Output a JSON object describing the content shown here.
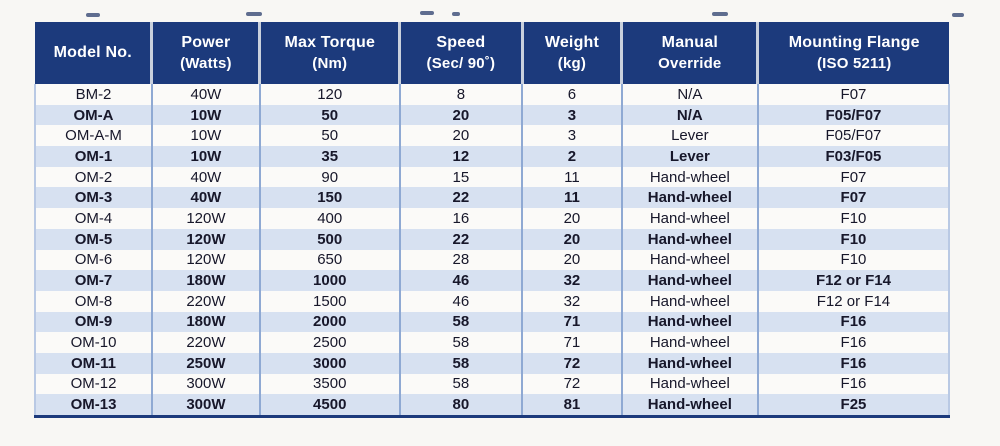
{
  "table": {
    "column_keys": [
      "model",
      "power",
      "torque",
      "speed",
      "weight",
      "override",
      "flange"
    ],
    "columns": [
      {
        "line1": "Model No.",
        "line2": ""
      },
      {
        "line1": "Power",
        "line2": "(Watts)"
      },
      {
        "line1": "Max Torque",
        "line2": "(Nm)"
      },
      {
        "line1": "Speed",
        "line2": "(Sec/ 90˚)"
      },
      {
        "line1": "Weight",
        "line2": "(kg)"
      },
      {
        "line1": "Manual",
        "line2": "Override"
      },
      {
        "line1": "Mounting Flange",
        "line2": "(ISO 5211)"
      }
    ],
    "rows": [
      {
        "model": "BM-2",
        "power": "40W",
        "torque": "120",
        "speed": "8",
        "weight": "6",
        "override": "N/A",
        "flange": "F07"
      },
      {
        "model": "OM-A",
        "power": "10W",
        "torque": "50",
        "speed": "20",
        "weight": "3",
        "override": "N/A",
        "flange": "F05/F07"
      },
      {
        "model": "OM-A-M",
        "power": "10W",
        "torque": "50",
        "speed": "20",
        "weight": "3",
        "override": "Lever",
        "flange": "F05/F07"
      },
      {
        "model": "OM-1",
        "power": "10W",
        "torque": "35",
        "speed": "12",
        "weight": "2",
        "override": "Lever",
        "flange": "F03/F05"
      },
      {
        "model": "OM-2",
        "power": "40W",
        "torque": "90",
        "speed": "15",
        "weight": "11",
        "override": "Hand-wheel",
        "flange": "F07"
      },
      {
        "model": "OM-3",
        "power": "40W",
        "torque": "150",
        "speed": "22",
        "weight": "11",
        "override": "Hand-wheel",
        "flange": "F07"
      },
      {
        "model": "OM-4",
        "power": "120W",
        "torque": "400",
        "speed": "16",
        "weight": "20",
        "override": "Hand-wheel",
        "flange": "F10"
      },
      {
        "model": "OM-5",
        "power": "120W",
        "torque": "500",
        "speed": "22",
        "weight": "20",
        "override": "Hand-wheel",
        "flange": "F10"
      },
      {
        "model": "OM-6",
        "power": "120W",
        "torque": "650",
        "speed": "28",
        "weight": "20",
        "override": "Hand-wheel",
        "flange": "F10"
      },
      {
        "model": "OM-7",
        "power": "180W",
        "torque": "1000",
        "speed": "46",
        "weight": "32",
        "override": "Hand-wheel",
        "flange": "F12 or F14"
      },
      {
        "model": "OM-8",
        "power": "220W",
        "torque": "1500",
        "speed": "46",
        "weight": "32",
        "override": "Hand-wheel",
        "flange": "F12 or F14"
      },
      {
        "model": "OM-9",
        "power": "180W",
        "torque": "2000",
        "speed": "58",
        "weight": "71",
        "override": "Hand-wheel",
        "flange": "F16"
      },
      {
        "model": "OM-10",
        "power": "220W",
        "torque": "2500",
        "speed": "58",
        "weight": "71",
        "override": "Hand-wheel",
        "flange": "F16"
      },
      {
        "model": "OM-11",
        "power": "250W",
        "torque": "3000",
        "speed": "58",
        "weight": "72",
        "override": "Hand-wheel",
        "flange": "F16"
      },
      {
        "model": "OM-12",
        "power": "300W",
        "torque": "3500",
        "speed": "58",
        "weight": "72",
        "override": "Hand-wheel",
        "flange": "F16"
      },
      {
        "model": "OM-13",
        "power": "300W",
        "torque": "4500",
        "speed": "80",
        "weight": "81",
        "override": "Hand-wheel",
        "flange": "F25"
      }
    ]
  },
  "colors": {
    "header_bg": "#1c3a7c",
    "header_text": "#ffffff",
    "row_alt_bg": "#d7e1f1",
    "row_bg": "#fbfaf8",
    "divider": "#8fa9d3",
    "body_text": "#17172a"
  }
}
